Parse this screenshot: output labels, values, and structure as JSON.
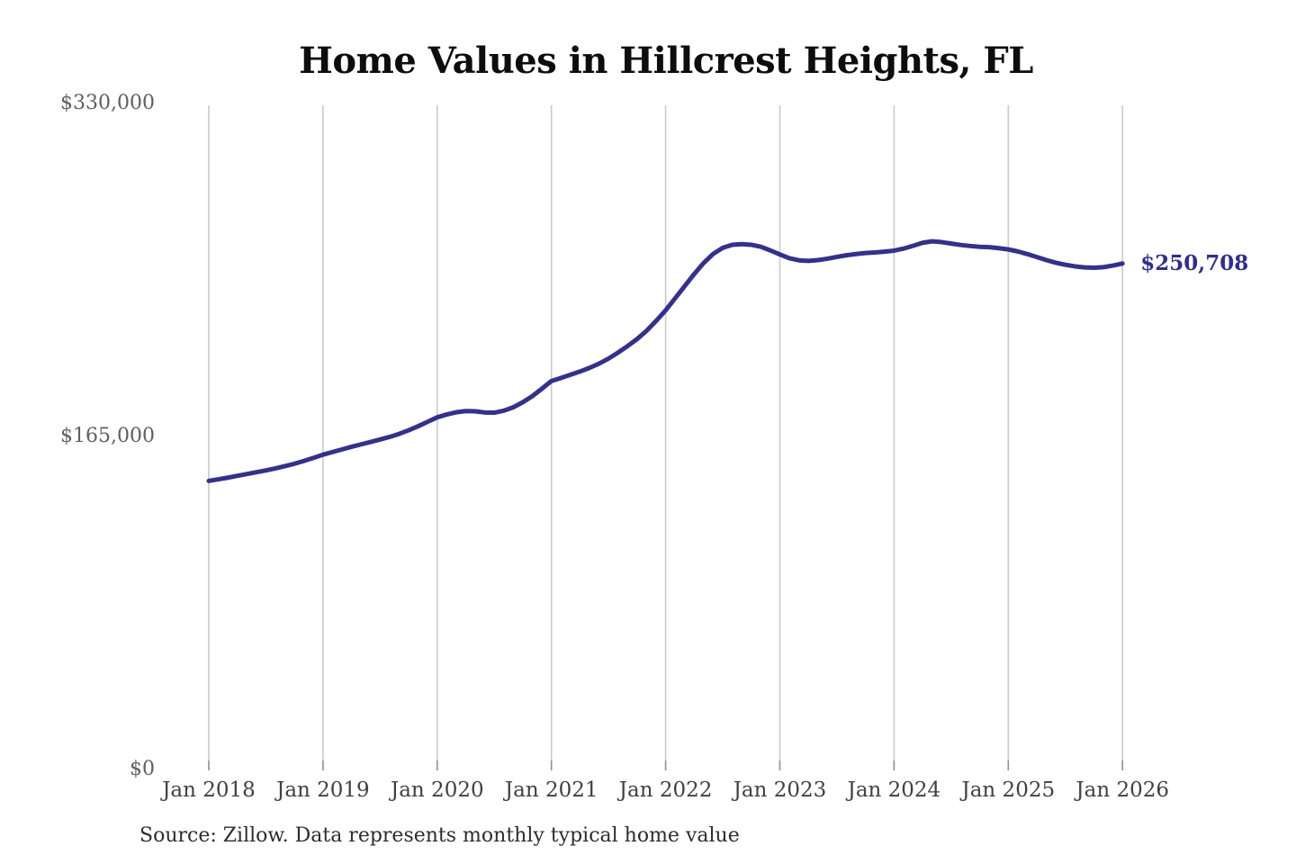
{
  "title": "Home Values in Hillcrest Heights, FL",
  "annotations": {
    "latest_value_label": "$250,708"
  },
  "footer": {
    "source": "Source: Zillow. Data represents monthly typical home value"
  },
  "colors": {
    "background": "#ffffff",
    "line": "#333090",
    "value_label": "#2e2e93",
    "grid": "#cacaca",
    "tick": "#8f8f8f",
    "title_text": "#0d0d0d",
    "y_tick_text": "#5f5f5f",
    "x_tick_text": "#414141",
    "source_text": "#2d2d2d"
  },
  "chart_data": {
    "type": "line",
    "title": "Home Values in Hillcrest Heights, FL",
    "xlabel": "",
    "ylabel": "",
    "grid": "vertical-only",
    "legend": "none",
    "ylim": [
      0,
      330000
    ],
    "x_tick_labels": [
      "Jan 2018",
      "Jan 2019",
      "Jan 2020",
      "Jan 2021",
      "Jan 2022",
      "Jan 2023",
      "Jan 2024",
      "Jan 2025",
      "Jan 2026"
    ],
    "y_ticks": [
      {
        "label": "$0",
        "value": 0
      },
      {
        "label": "$165,000",
        "value": 165000
      },
      {
        "label": "$330,000",
        "value": 330000
      }
    ],
    "end_label": "$250,708",
    "series": [
      {
        "name": "Typical home value (USD)",
        "frequency": "monthly",
        "start": "Jan 2018",
        "end": "Jan 2026",
        "values": [
          143000,
          143800,
          144600,
          145500,
          146400,
          147300,
          148200,
          149200,
          150300,
          151500,
          152900,
          154400,
          156000,
          157300,
          158600,
          159900,
          161100,
          162300,
          163500,
          164800,
          166300,
          168100,
          170100,
          172300,
          174500,
          175900,
          177000,
          177600,
          177500,
          176900,
          176800,
          177800,
          179500,
          182000,
          185000,
          188700,
          192500,
          194000,
          195600,
          197200,
          199000,
          201100,
          203600,
          206600,
          209800,
          213300,
          217400,
          222300,
          227500,
          233500,
          239500,
          245500,
          251000,
          255500,
          258500,
          260000,
          260300,
          260000,
          259000,
          257200,
          255200,
          253300,
          252300,
          252000,
          252400,
          253100,
          254000,
          254800,
          255400,
          255900,
          256200,
          256600,
          257100,
          258100,
          259500,
          261000,
          261700,
          261300,
          260600,
          259900,
          259400,
          259000,
          258800,
          258300,
          257700,
          256700,
          255400,
          253900,
          252400,
          251100,
          250100,
          249300,
          248800,
          248600,
          248900,
          249700,
          250708
        ]
      }
    ]
  }
}
